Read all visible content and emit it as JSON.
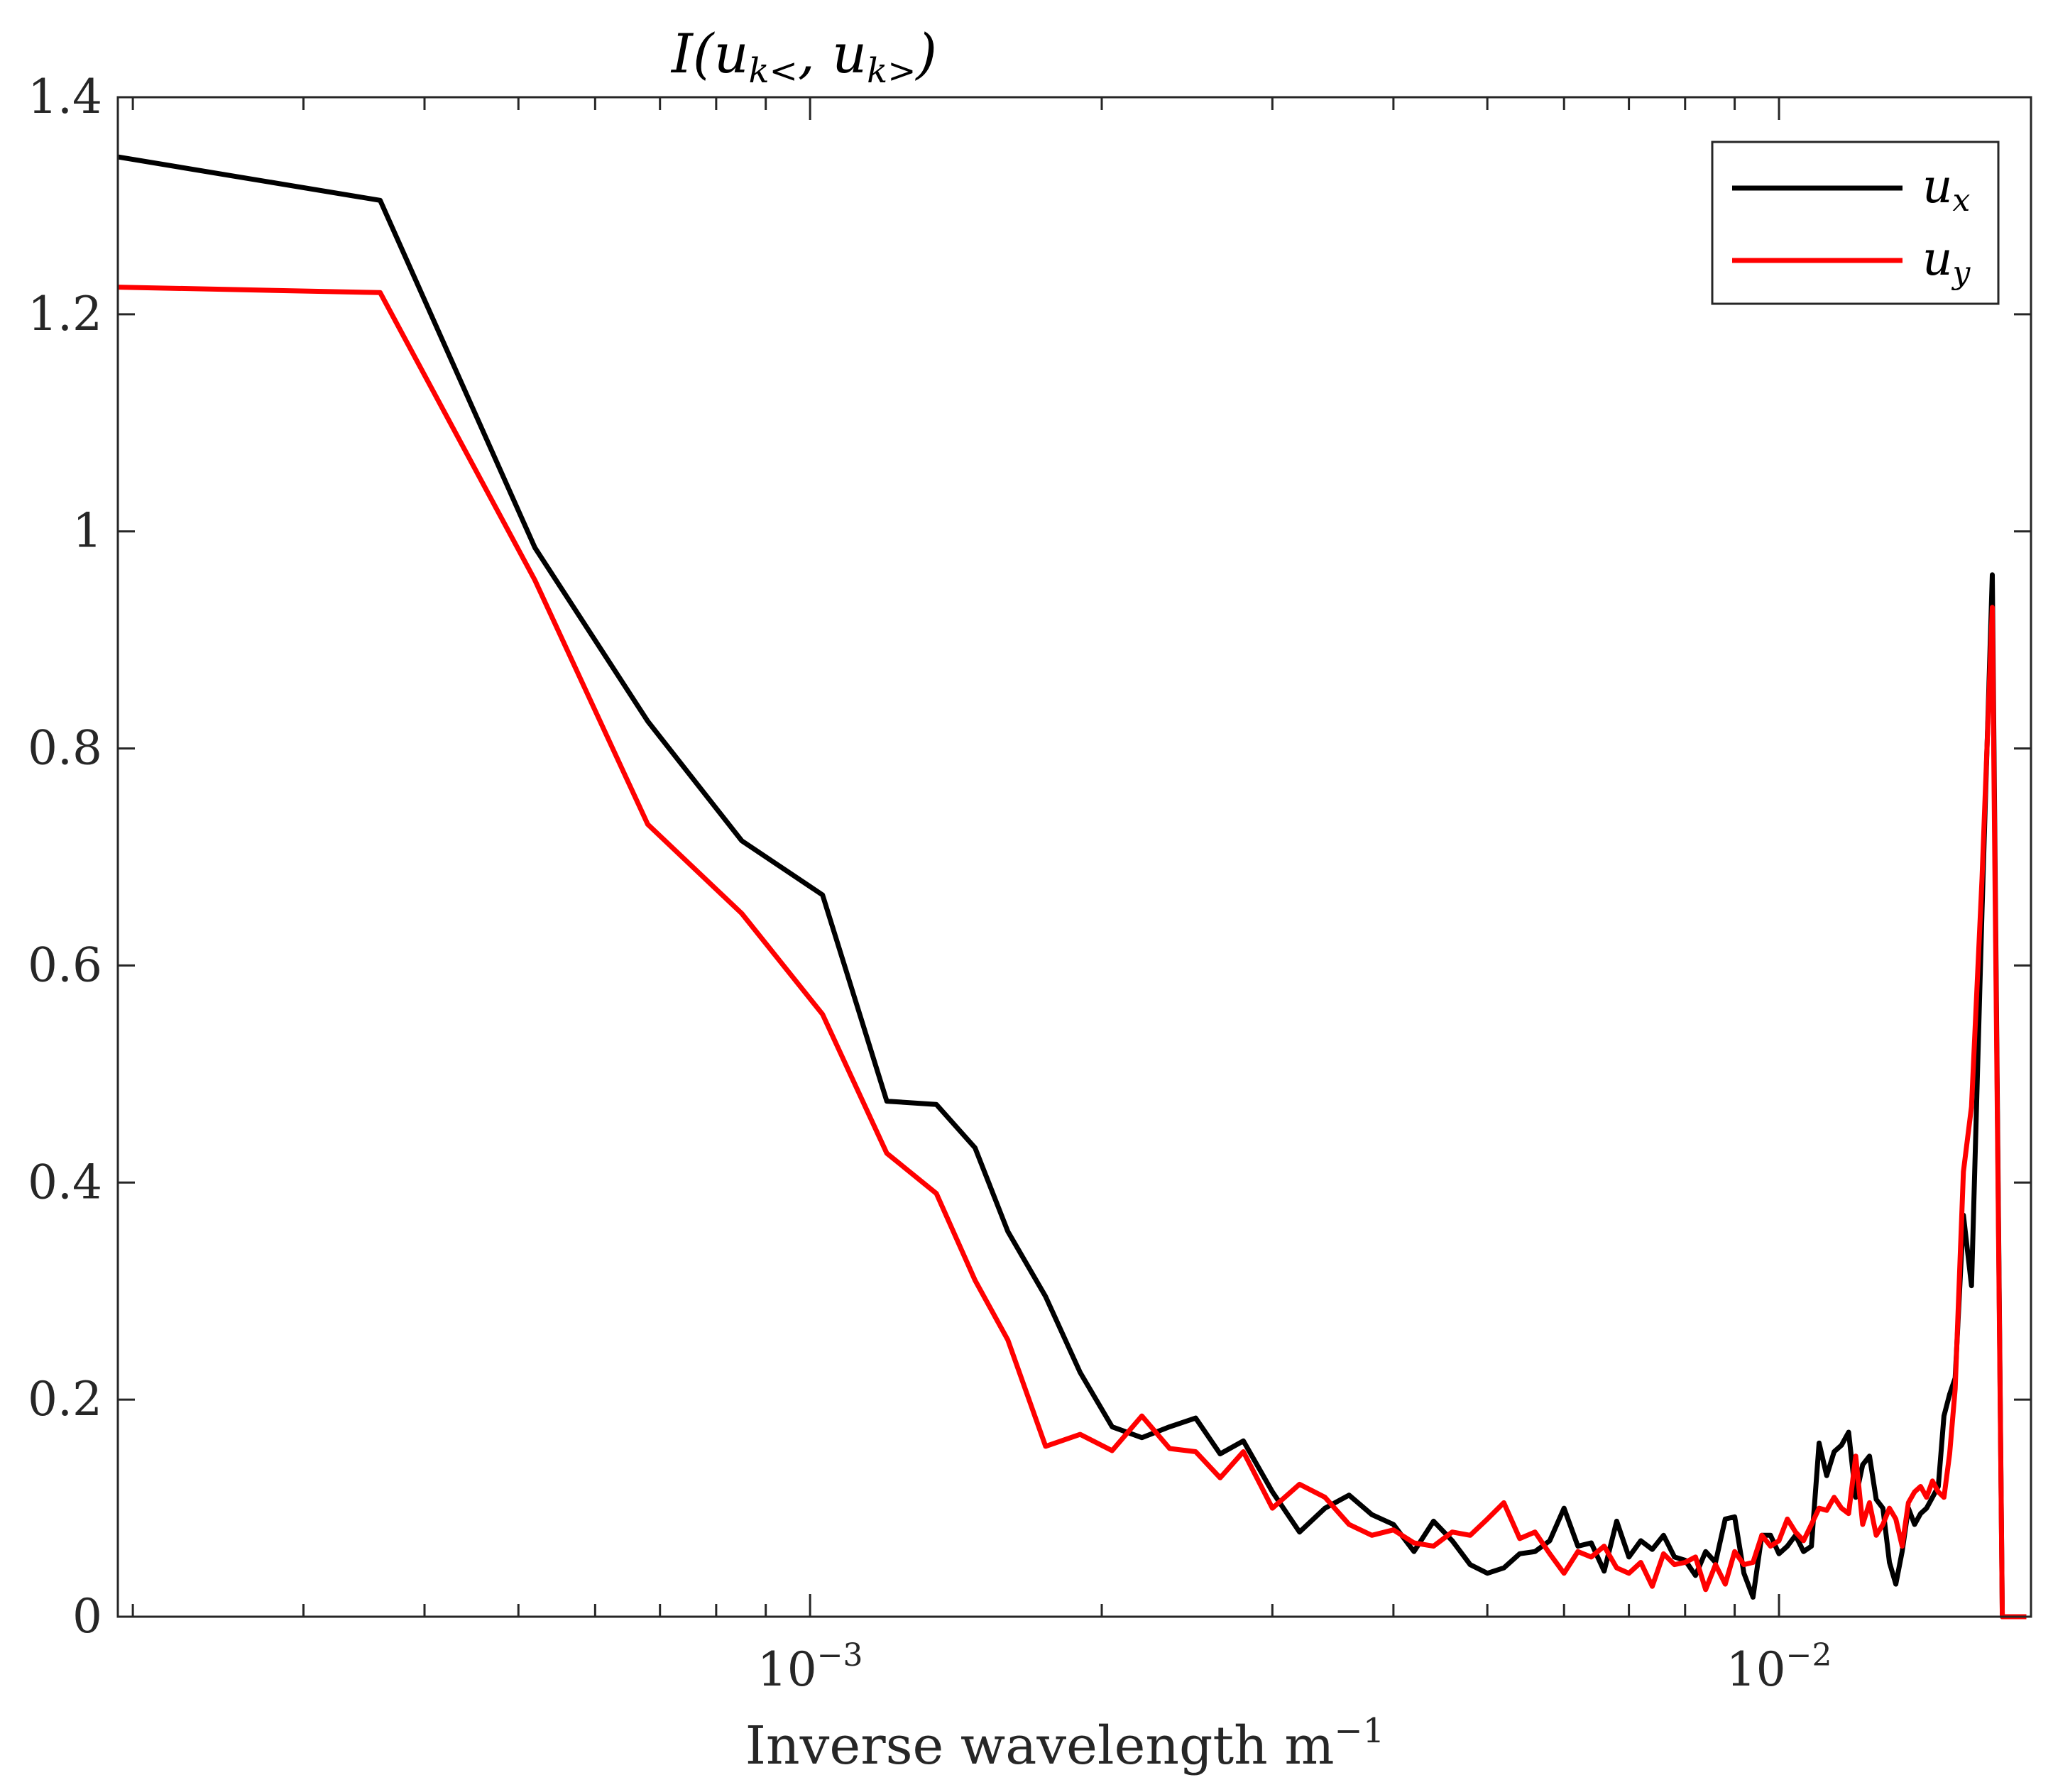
{
  "chart_data": {
    "type": "line",
    "title": "I(u_k<, u_k>)",
    "title_main": "I(u",
    "title_sub1": "k<",
    "title_mid": ", u",
    "title_sub2": "k>",
    "title_end": ")",
    "xlabel": "Inverse wavelength m",
    "xlabel_main": "Inverse wavelength m",
    "xlabel_sup": "−1",
    "ylabel": "",
    "xscale": "log",
    "xlim": [
      0.000193,
      0.0182
    ],
    "ylim": [
      0,
      1.4
    ],
    "grid": false,
    "legend_position": "top-right",
    "y_ticks": [
      0,
      0.2,
      0.4,
      0.6,
      0.8,
      1,
      1.2,
      1.4
    ],
    "y_tick_labels": [
      "0",
      "0.2",
      "0.4",
      "0.6",
      "0.8",
      "1",
      "1.2",
      "1.4"
    ],
    "x_major_ticks": [
      0.001,
      0.01
    ],
    "x_tick_labels": [
      {
        "base": "10",
        "exp": "−3"
      },
      {
        "base": "10",
        "exp": "−2"
      }
    ],
    "series": [
      {
        "name": "u_x",
        "legend_base": "u",
        "legend_sub": "x",
        "color": "#000000",
        "x": [
          0.000193,
          0.00036,
          0.00052,
          0.00068,
          0.00085,
          0.00103,
          0.0012,
          0.00135,
          0.00148,
          0.0016,
          0.00175,
          0.0019,
          0.00205,
          0.0022,
          0.00235,
          0.0025,
          0.00265,
          0.0028,
          0.003,
          0.0032,
          0.0034,
          0.0036,
          0.0038,
          0.004,
          0.0042,
          0.0044,
          0.0046,
          0.0048,
          0.005,
          0.0052,
          0.0054,
          0.0056,
          0.0058,
          0.006,
          0.0062,
          0.0064,
          0.0066,
          0.0068,
          0.007,
          0.0072,
          0.0074,
          0.0076,
          0.0078,
          0.008,
          0.0082,
          0.0084,
          0.0086,
          0.0088,
          0.009,
          0.0092,
          0.0094,
          0.0096,
          0.0098,
          0.01,
          0.0102,
          0.0104,
          0.0106,
          0.0108,
          0.011,
          0.0112,
          0.0114,
          0.0116,
          0.0118,
          0.012,
          0.0122,
          0.0124,
          0.0126,
          0.0128,
          0.013,
          0.0132,
          0.0134,
          0.0136,
          0.0138,
          0.014,
          0.0142,
          0.0144,
          0.0146,
          0.0148,
          0.015,
          0.0152,
          0.0155,
          0.0158,
          0.0162,
          0.0166,
          0.017,
          0.0174,
          0.0178,
          0.018
        ],
        "values": [
          1.345,
          1.305,
          0.985,
          0.825,
          0.715,
          0.665,
          0.475,
          0.472,
          0.432,
          0.355,
          0.295,
          0.225,
          0.175,
          0.165,
          0.175,
          0.183,
          0.15,
          0.162,
          0.115,
          0.078,
          0.1,
          0.112,
          0.094,
          0.085,
          0.06,
          0.088,
          0.07,
          0.048,
          0.04,
          0.045,
          0.058,
          0.06,
          0.07,
          0.1,
          0.065,
          0.068,
          0.042,
          0.088,
          0.055,
          0.07,
          0.062,
          0.075,
          0.055,
          0.052,
          0.038,
          0.06,
          0.05,
          0.09,
          0.092,
          0.04,
          0.018,
          0.075,
          0.075,
          0.058,
          0.065,
          0.075,
          0.06,
          0.065,
          0.16,
          0.13,
          0.152,
          0.158,
          0.17,
          0.11,
          0.14,
          0.148,
          0.108,
          0.1,
          0.05,
          0.03,
          0.06,
          0.1,
          0.085,
          0.095,
          0.1,
          0.11,
          0.12,
          0.185,
          0.205,
          0.22,
          0.37,
          0.305,
          0.65,
          0.96,
          0.0,
          0.0,
          0.0,
          0.0
        ]
      },
      {
        "name": "u_y",
        "legend_base": "u",
        "legend_sub": "y",
        "color": "#ff0000",
        "x": [
          0.000193,
          0.00036,
          0.00052,
          0.00068,
          0.00085,
          0.00103,
          0.0012,
          0.00135,
          0.00148,
          0.0016,
          0.00175,
          0.0019,
          0.00205,
          0.0022,
          0.00235,
          0.0025,
          0.00265,
          0.0028,
          0.003,
          0.0032,
          0.0034,
          0.0036,
          0.0038,
          0.004,
          0.0042,
          0.0044,
          0.0046,
          0.0048,
          0.005,
          0.0052,
          0.0054,
          0.0056,
          0.0058,
          0.006,
          0.0062,
          0.0064,
          0.0066,
          0.0068,
          0.007,
          0.0072,
          0.0074,
          0.0076,
          0.0078,
          0.008,
          0.0082,
          0.0084,
          0.0086,
          0.0088,
          0.009,
          0.0092,
          0.0094,
          0.0096,
          0.0098,
          0.01,
          0.0102,
          0.0104,
          0.0106,
          0.0108,
          0.011,
          0.0112,
          0.0114,
          0.0116,
          0.0118,
          0.012,
          0.0122,
          0.0124,
          0.0126,
          0.0128,
          0.013,
          0.0132,
          0.0134,
          0.0136,
          0.0138,
          0.014,
          0.0142,
          0.0144,
          0.0146,
          0.0148,
          0.015,
          0.0152,
          0.0155,
          0.0158,
          0.0162,
          0.0166,
          0.017,
          0.0174,
          0.0178,
          0.018
        ],
        "values": [
          1.225,
          1.22,
          0.955,
          0.73,
          0.648,
          0.555,
          0.427,
          0.39,
          0.31,
          0.255,
          0.157,
          0.168,
          0.153,
          0.185,
          0.155,
          0.152,
          0.128,
          0.152,
          0.1,
          0.122,
          0.11,
          0.085,
          0.075,
          0.08,
          0.068,
          0.065,
          0.078,
          0.075,
          0.09,
          0.105,
          0.072,
          0.078,
          0.058,
          0.04,
          0.06,
          0.055,
          0.065,
          0.045,
          0.04,
          0.05,
          0.028,
          0.058,
          0.048,
          0.05,
          0.055,
          0.025,
          0.048,
          0.03,
          0.06,
          0.048,
          0.05,
          0.075,
          0.065,
          0.07,
          0.09,
          0.078,
          0.07,
          0.085,
          0.1,
          0.098,
          0.11,
          0.1,
          0.095,
          0.148,
          0.085,
          0.105,
          0.075,
          0.085,
          0.1,
          0.09,
          0.065,
          0.105,
          0.115,
          0.12,
          0.11,
          0.125,
          0.115,
          0.11,
          0.15,
          0.21,
          0.41,
          0.47,
          0.68,
          0.93,
          0.0,
          0.0,
          0.0,
          0.0
        ]
      }
    ]
  }
}
